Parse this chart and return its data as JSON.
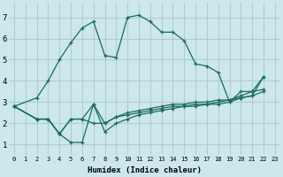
{
  "xlabel": "Humidex (Indice chaleur)",
  "ylabel": "",
  "bg_color": "#cce8ec",
  "grid_color": "#b0cdd1",
  "line_color": "#1a6b5a",
  "xlim": [
    -0.5,
    23.5
  ],
  "ylim": [
    0.5,
    7.7
  ],
  "xticks": [
    0,
    1,
    2,
    3,
    4,
    5,
    6,
    7,
    8,
    9,
    10,
    11,
    12,
    13,
    14,
    15,
    16,
    17,
    18,
    19,
    20,
    21,
    22,
    23
  ],
  "yticks": [
    1,
    2,
    3,
    4,
    5,
    6,
    7
  ],
  "lines": [
    {
      "x": [
        0,
        2,
        3,
        4,
        5,
        6,
        7,
        8,
        9,
        10,
        11,
        12,
        13,
        14,
        15,
        16,
        17,
        18,
        19,
        20,
        21,
        22
      ],
      "y": [
        2.8,
        3.2,
        4.0,
        5.0,
        5.8,
        6.5,
        6.8,
        5.2,
        5.1,
        7.0,
        7.1,
        6.8,
        6.3,
        6.3,
        5.9,
        4.8,
        4.7,
        4.4,
        3.0,
        3.5,
        3.5,
        4.2
      ]
    },
    {
      "x": [
        0,
        2,
        3,
        4,
        5,
        6,
        7,
        8,
        9,
        10,
        11,
        12,
        13,
        14,
        15,
        16,
        17,
        18,
        19,
        20,
        21,
        22
      ],
      "y": [
        2.8,
        2.2,
        2.2,
        1.5,
        1.1,
        1.1,
        2.9,
        1.6,
        2.0,
        2.2,
        2.4,
        2.5,
        2.6,
        2.7,
        2.8,
        2.8,
        2.9,
        3.0,
        3.1,
        3.3,
        3.5,
        3.6
      ]
    },
    {
      "x": [
        0,
        2,
        3,
        4,
        5,
        6,
        7,
        8,
        9,
        10,
        11,
        12,
        13,
        14,
        15,
        16,
        17,
        18,
        19,
        20,
        21,
        22
      ],
      "y": [
        2.8,
        2.2,
        2.2,
        1.5,
        2.2,
        2.2,
        2.0,
        2.0,
        2.3,
        2.5,
        2.6,
        2.7,
        2.8,
        2.9,
        2.9,
        3.0,
        3.0,
        3.1,
        3.1,
        3.2,
        3.3,
        3.5
      ]
    },
    {
      "x": [
        0,
        2,
        3,
        4,
        5,
        6,
        7,
        8,
        9,
        10,
        11,
        12,
        13,
        14,
        15,
        16,
        17,
        18,
        19,
        20,
        21,
        22
      ],
      "y": [
        2.8,
        2.2,
        2.2,
        1.5,
        2.2,
        2.2,
        2.9,
        2.0,
        2.3,
        2.4,
        2.5,
        2.6,
        2.7,
        2.8,
        2.8,
        2.9,
        2.9,
        2.9,
        3.0,
        3.2,
        3.3,
        4.2
      ]
    }
  ]
}
